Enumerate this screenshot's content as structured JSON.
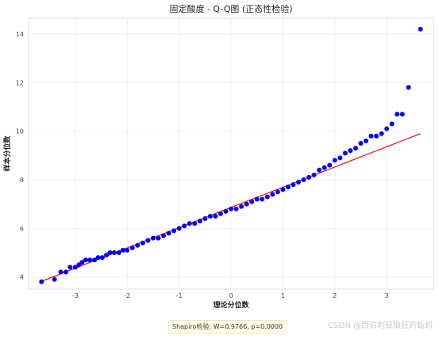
{
  "chart_data": {
    "type": "scatter",
    "title": "固定酸度 - Q-Q图 (正态性检验)",
    "xlabel": "理论分位数",
    "ylabel": "样本分位数",
    "xlim": [
      -3.9,
      3.9
    ],
    "ylim": [
      3.5,
      14.65
    ],
    "xticks": [
      -3,
      -2,
      -1,
      0,
      1,
      2,
      3
    ],
    "yticks": [
      4,
      6,
      8,
      10,
      12,
      14
    ],
    "grid": true,
    "point_color": "#0000ff",
    "line_color": "#ff0000",
    "reference_line": {
      "x": [
        -3.65,
        3.65
      ],
      "y": [
        3.82,
        9.9
      ]
    },
    "points": [
      [
        -3.65,
        3.8
      ],
      [
        -3.4,
        3.9
      ],
      [
        -3.28,
        4.2
      ],
      [
        -3.18,
        4.2
      ],
      [
        -3.1,
        4.4
      ],
      [
        -3.0,
        4.4
      ],
      [
        -2.93,
        4.5
      ],
      [
        -2.87,
        4.6
      ],
      [
        -2.8,
        4.7
      ],
      [
        -2.72,
        4.7
      ],
      [
        -2.63,
        4.7
      ],
      [
        -2.56,
        4.8
      ],
      [
        -2.48,
        4.8
      ],
      [
        -2.4,
        4.9
      ],
      [
        -2.33,
        5.0
      ],
      [
        -2.25,
        5.0
      ],
      [
        -2.16,
        5.0
      ],
      [
        -2.08,
        5.1
      ],
      [
        -2.0,
        5.1
      ],
      [
        -1.9,
        5.2
      ],
      [
        -1.8,
        5.3
      ],
      [
        -1.7,
        5.4
      ],
      [
        -1.6,
        5.5
      ],
      [
        -1.5,
        5.6
      ],
      [
        -1.4,
        5.6
      ],
      [
        -1.3,
        5.7
      ],
      [
        -1.2,
        5.8
      ],
      [
        -1.1,
        5.9
      ],
      [
        -1.0,
        6.0
      ],
      [
        -0.9,
        6.1
      ],
      [
        -0.8,
        6.2
      ],
      [
        -0.7,
        6.2
      ],
      [
        -0.6,
        6.3
      ],
      [
        -0.5,
        6.4
      ],
      [
        -0.4,
        6.5
      ],
      [
        -0.3,
        6.5
      ],
      [
        -0.2,
        6.6
      ],
      [
        -0.1,
        6.7
      ],
      [
        0.0,
        6.8
      ],
      [
        0.1,
        6.8
      ],
      [
        0.2,
        6.9
      ],
      [
        0.3,
        7.0
      ],
      [
        0.4,
        7.1
      ],
      [
        0.5,
        7.2
      ],
      [
        0.6,
        7.2
      ],
      [
        0.7,
        7.3
      ],
      [
        0.8,
        7.4
      ],
      [
        0.9,
        7.5
      ],
      [
        1.0,
        7.6
      ],
      [
        1.1,
        7.7
      ],
      [
        1.2,
        7.8
      ],
      [
        1.3,
        7.9
      ],
      [
        1.4,
        8.0
      ],
      [
        1.5,
        8.1
      ],
      [
        1.6,
        8.2
      ],
      [
        1.7,
        8.4
      ],
      [
        1.8,
        8.5
      ],
      [
        1.9,
        8.6
      ],
      [
        2.0,
        8.8
      ],
      [
        2.1,
        8.9
      ],
      [
        2.2,
        9.1
      ],
      [
        2.3,
        9.2
      ],
      [
        2.4,
        9.3
      ],
      [
        2.5,
        9.5
      ],
      [
        2.6,
        9.6
      ],
      [
        2.7,
        9.8
      ],
      [
        2.8,
        9.8
      ],
      [
        2.9,
        9.9
      ],
      [
        3.0,
        10.1
      ],
      [
        3.1,
        10.3
      ],
      [
        3.2,
        10.7
      ],
      [
        3.3,
        10.7
      ],
      [
        3.42,
        11.8
      ],
      [
        3.65,
        14.2
      ]
    ]
  },
  "footer": {
    "note": "Shapiro检验: W=0.9766, p=0.0000",
    "watermark": "CSDN @西伯利亚狼狂的蚯蚓"
  }
}
